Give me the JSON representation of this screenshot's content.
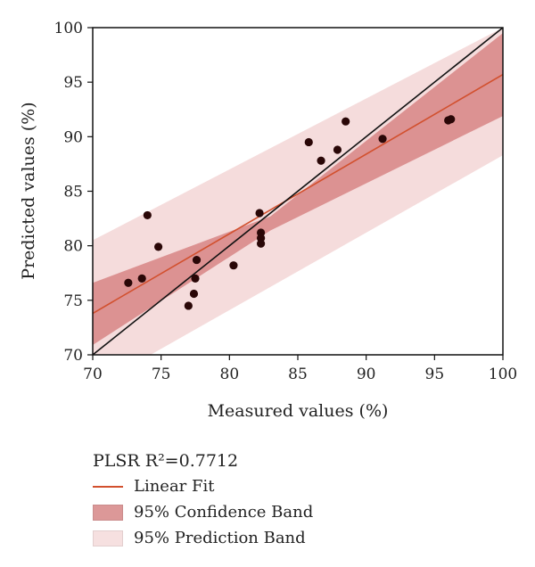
{
  "chart_data": {
    "type": "scatter",
    "xlabel": "Measured values (%)",
    "ylabel": "Predicted values (%)",
    "xlim": [
      70,
      100
    ],
    "ylim": [
      70,
      100
    ],
    "xticks": [
      "70",
      "75",
      "80",
      "85",
      "90",
      "95",
      "100"
    ],
    "yticks": [
      "70",
      "75",
      "80",
      "85",
      "90",
      "95",
      "100"
    ],
    "grid": false,
    "points": [
      {
        "x": 72.6,
        "y": 76.6
      },
      {
        "x": 73.6,
        "y": 77.0
      },
      {
        "x": 74.0,
        "y": 82.8
      },
      {
        "x": 74.8,
        "y": 79.9
      },
      {
        "x": 77.0,
        "y": 74.5
      },
      {
        "x": 77.4,
        "y": 75.6
      },
      {
        "x": 77.5,
        "y": 77.0
      },
      {
        "x": 77.6,
        "y": 78.7
      },
      {
        "x": 80.3,
        "y": 78.2
      },
      {
        "x": 82.2,
        "y": 83.0
      },
      {
        "x": 82.3,
        "y": 81.2
      },
      {
        "x": 82.3,
        "y": 80.7
      },
      {
        "x": 82.3,
        "y": 80.2
      },
      {
        "x": 85.8,
        "y": 89.5
      },
      {
        "x": 86.7,
        "y": 87.8
      },
      {
        "x": 87.9,
        "y": 88.8
      },
      {
        "x": 88.5,
        "y": 91.4
      },
      {
        "x": 91.2,
        "y": 89.8
      },
      {
        "x": 96.0,
        "y": 91.5
      },
      {
        "x": 96.2,
        "y": 91.6
      }
    ],
    "linear_fit": {
      "x": [
        70,
        100
      ],
      "y": [
        73.8,
        95.7
      ]
    },
    "identity_line": {
      "x": [
        70,
        100
      ],
      "y": [
        70,
        100
      ]
    },
    "confidence_band": {
      "x": [
        70,
        83,
        100
      ],
      "upper": [
        76.6,
        82.7,
        99.5
      ],
      "lower": [
        70.9,
        81.4,
        91.9
      ]
    },
    "prediction_band": {
      "x": [
        70,
        100
      ],
      "upper": [
        80.5,
        100.0
      ],
      "lower": [
        67.0,
        88.3
      ]
    },
    "colors": {
      "points": "#2a0707",
      "linear_fit": "#d2502e",
      "identity_line": "#111111",
      "confidence_band": "#d98a8a",
      "prediction_band": "#f5dcdc"
    }
  },
  "legend": {
    "title": "PLSR R²=0.7712",
    "items": [
      {
        "label": "Linear Fit",
        "kind": "line",
        "color": "#d2502e"
      },
      {
        "label": "95% Confidence Band",
        "kind": "box",
        "color": "#dc9898"
      },
      {
        "label": "95% Prediction Band",
        "kind": "box",
        "color": "#f6e0e0"
      }
    ]
  }
}
